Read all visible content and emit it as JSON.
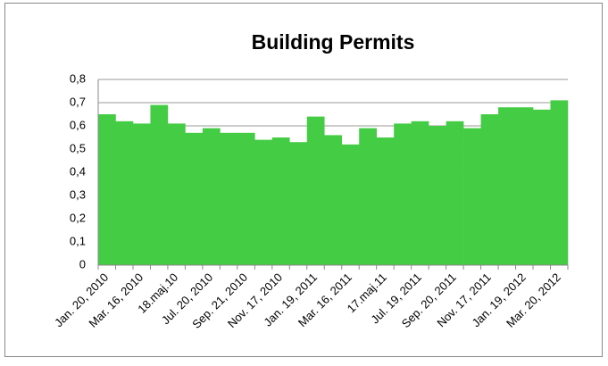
{
  "chart_data": {
    "type": "bar",
    "title": "Building Permits",
    "categories": [
      "Jan. 20, 2010",
      null,
      "Mar. 16, 2010",
      null,
      "18.maj.10",
      null,
      "Jul. 20, 2010",
      null,
      "Sep. 21, 2010",
      null,
      "Nov. 17, 2010",
      null,
      "Jan. 19, 2011",
      null,
      "Mar. 16, 2011",
      null,
      "17.maj.11",
      null,
      "Jul. 19, 2011",
      null,
      "Sep. 20, 2011",
      null,
      "Nov. 17, 2011",
      null,
      "Jan. 19, 2012",
      null,
      "Mar. 20, 2012"
    ],
    "values": [
      0.65,
      0.62,
      0.61,
      0.69,
      0.61,
      0.57,
      0.59,
      0.57,
      0.57,
      0.54,
      0.55,
      0.53,
      0.64,
      0.56,
      0.52,
      0.59,
      0.55,
      0.61,
      0.62,
      0.6,
      0.62,
      0.59,
      0.65,
      0.68,
      0.68,
      0.67,
      0.71
    ],
    "color": "#44cc44",
    "ylim": [
      0,
      0.8
    ],
    "yticks": [
      0,
      {
        "value": 0.1,
        "label": "0,1"
      },
      {
        "value": 0.2,
        "label": "0,2"
      },
      {
        "value": 0.3,
        "label": "0,3"
      },
      {
        "value": 0.4,
        "label": "0,4"
      },
      {
        "value": 0.5,
        "label": "0,5"
      },
      {
        "value": 0.6,
        "label": "0,6"
      },
      {
        "value": 0.7,
        "label": "0,7"
      },
      {
        "value": 0.8,
        "label": "0,8"
      }
    ],
    "grid": true
  }
}
